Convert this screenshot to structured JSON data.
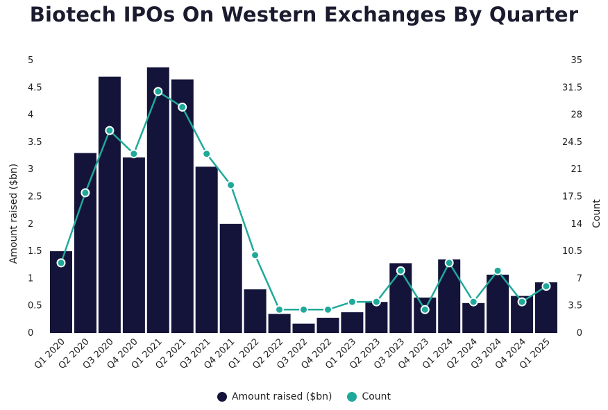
{
  "colors": {
    "bar": "#14143a",
    "line": "#1fa99a"
  },
  "chart_data": {
    "type": "bar",
    "title": "Biotech IPOs On Western Exchanges By Quarter",
    "ylabel": "Amount raised ($bn)",
    "y2label": "Count",
    "ylim": [
      0,
      5
    ],
    "y2lim": [
      0,
      35
    ],
    "yticks": [
      "0",
      "0.5",
      "1",
      "1.5",
      "2",
      "2.5",
      "3",
      "3.5",
      "4",
      "4.5",
      "5"
    ],
    "y2ticks": [
      "0",
      "3.5",
      "7",
      "10.5",
      "14",
      "17.5",
      "21",
      "24.5",
      "28",
      "31.5",
      "35"
    ],
    "categories": [
      "Q1 2020",
      "Q2 2020",
      "Q3 2020",
      "Q4 2020",
      "Q1 2021",
      "Q2 2021",
      "Q3 2021",
      "Q4 2021",
      "Q1 2022",
      "Q2 2022",
      "Q3 2022",
      "Q4 2022",
      "Q1 2023",
      "Q2 2023",
      "Q3 2023",
      "Q4 2023",
      "Q1 2024",
      "Q2 2024",
      "Q3 2024",
      "Q4 2024",
      "Q1 2025"
    ],
    "series": [
      {
        "name": "Amount raised ($bn)",
        "type": "bar",
        "axis": "left",
        "values": [
          1.5,
          3.3,
          4.7,
          3.22,
          4.87,
          4.65,
          3.05,
          2.0,
          0.8,
          0.35,
          0.17,
          0.28,
          0.38,
          0.57,
          1.28,
          0.65,
          1.35,
          0.55,
          1.07,
          0.68,
          0.93
        ]
      },
      {
        "name": "Count",
        "type": "line",
        "axis": "right",
        "values": [
          9,
          18,
          26,
          23,
          31,
          29,
          23,
          19,
          10,
          3,
          3,
          3,
          4,
          4,
          8,
          3,
          9,
          4,
          8,
          4,
          6
        ]
      }
    ],
    "legend": "bottom-center",
    "grid": false
  }
}
